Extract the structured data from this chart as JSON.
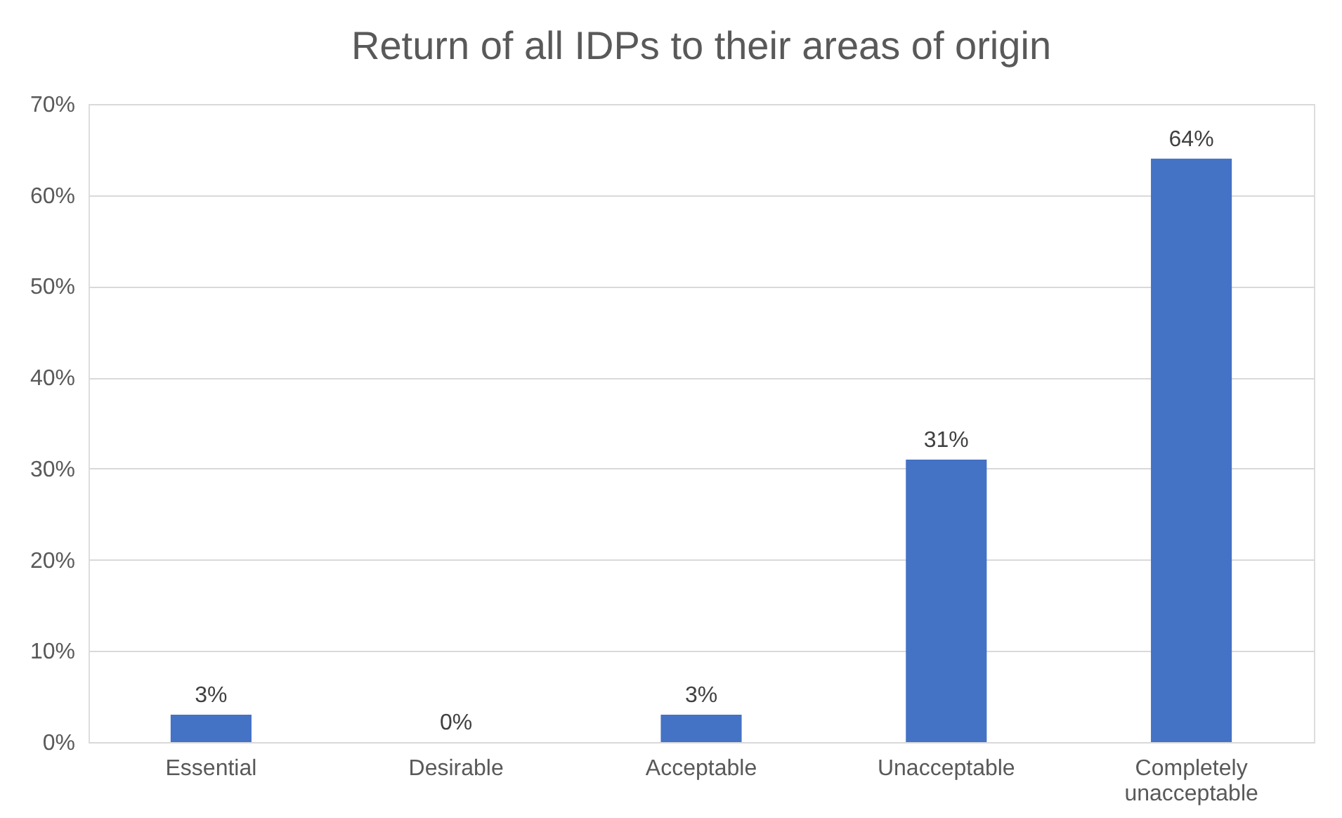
{
  "chart_data": {
    "type": "bar",
    "title": "Return of all IDPs to their areas of origin",
    "categories": [
      "Essential",
      "Desirable",
      "Acceptable",
      "Unacceptable",
      "Completely unacceptable"
    ],
    "values": [
      3,
      0,
      3,
      31,
      64
    ],
    "value_labels": [
      "3%",
      "0%",
      "3%",
      "31%",
      "64%"
    ],
    "color": "#4472c4",
    "ylim": [
      0,
      70
    ],
    "yticks": [
      {
        "value": 0,
        "label": "0%"
      },
      {
        "value": 10,
        "label": "10%"
      },
      {
        "value": 20,
        "label": "20%"
      },
      {
        "value": 30,
        "label": "30%"
      },
      {
        "value": 40,
        "label": "40%"
      },
      {
        "value": 50,
        "label": "50%"
      },
      {
        "value": 60,
        "label": "60%"
      },
      {
        "value": 70,
        "label": "70%"
      }
    ],
    "grid": "y"
  }
}
